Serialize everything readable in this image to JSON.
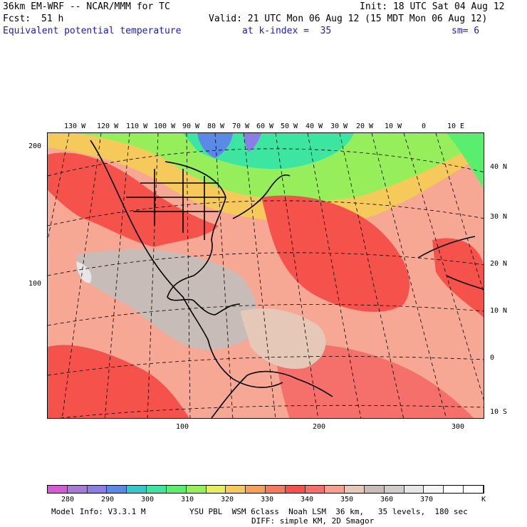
{
  "header": {
    "model_title": "36km EM-WRF -- NCAR/MMM for TC",
    "init": "Init: 18 UTC Sat 04 Aug 12",
    "fcst_label": "Fcst:",
    "fcst_value": "51 h",
    "valid": "Valid: 21 UTC Mon 06 Aug 12 (15 MDT Mon 06 Aug 12)",
    "field_name": "Equivalent potential temperature",
    "level": "at k-index =  35",
    "smoothing": "sm= 6"
  },
  "map": {
    "lon_labels": [
      "130 W",
      "120 W",
      "110 W",
      "100 W",
      "90 W",
      "80 W",
      "70 W",
      "60 W",
      "50 W",
      "40 W",
      "30 W",
      "20 W",
      "10 W",
      "0",
      "10 E"
    ],
    "lat_labels": [
      "40 N",
      "30 N",
      "20 N",
      "10 N",
      "0",
      "10 S"
    ],
    "y_grid_labels": [
      "200",
      "100"
    ],
    "x_grid_labels": [
      "100",
      "200",
      "300"
    ]
  },
  "legend": {
    "colors": [
      "#d65ad6",
      "#a77ad6",
      "#8a7ee6",
      "#5a8ae6",
      "#36c8c8",
      "#3ce6a0",
      "#5aee6e",
      "#96ee5a",
      "#e6ee5a",
      "#f5c95a",
      "#f6a05a",
      "#f57a5a",
      "#f4524a",
      "#f5706a",
      "#f7a090",
      "#e6c8b8",
      "#c8bcb8",
      "#d0cccc",
      "#e6e6e6",
      "#f5f5f5",
      "#ffffff",
      "#ffffff"
    ],
    "ticks": [
      "280",
      "290",
      "300",
      "310",
      "320",
      "330",
      "340",
      "350",
      "360",
      "370"
    ],
    "unit": "K"
  },
  "footer": {
    "model_info": "Model Info: V3.3.1 M",
    "physics": "YSU PBL  WSM 6class  Noah LSM  36 km,   35 levels,  180 sec",
    "diffusion": "DIFF: simple KM, 2D Smagor"
  }
}
